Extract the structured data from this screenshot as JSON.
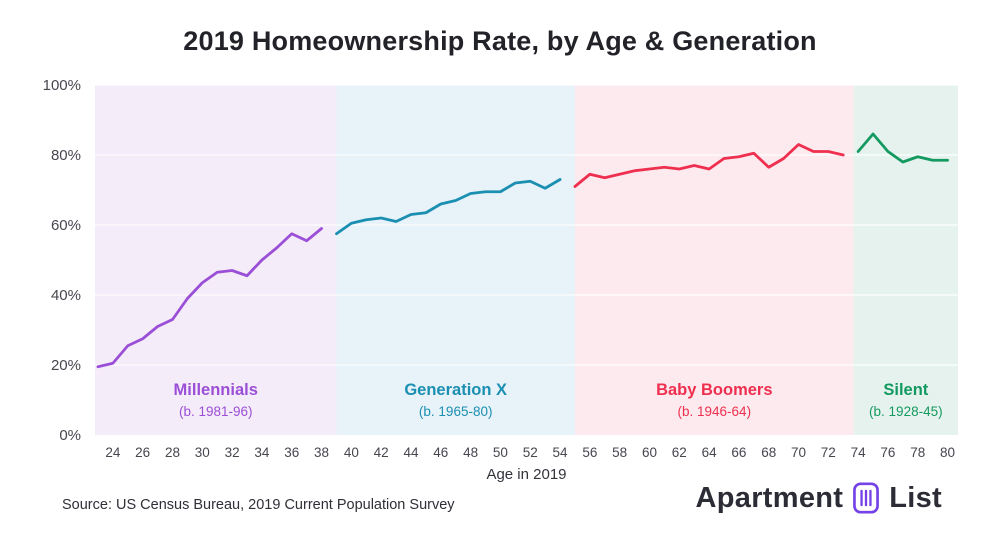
{
  "page": {
    "title": "2019 Homeownership Rate, by Age & Generation"
  },
  "footer": {
    "source": "Source: US Census Bureau, 2019 Current Population Survey",
    "logo_text_1": "Apartment",
    "logo_text_2": "List",
    "logo_color": "#7442e6"
  },
  "chart_data": {
    "type": "line",
    "title": "2019 Homeownership Rate, by Age & Generation",
    "xlabel": "Age in 2019",
    "ylabel": "",
    "x_range": [
      22.8,
      80.7
    ],
    "ylim": [
      0,
      100
    ],
    "y_ticks": [
      0,
      20,
      40,
      60,
      80,
      100
    ],
    "x_ticks": [
      24,
      26,
      28,
      30,
      32,
      34,
      36,
      38,
      40,
      42,
      44,
      46,
      48,
      50,
      52,
      54,
      56,
      58,
      60,
      62,
      64,
      66,
      68,
      70,
      72,
      74,
      76,
      78,
      80
    ],
    "grid": "white horizontal gridlines over shaded generation bands",
    "legend": "colored labels inside each generation band",
    "series": [
      {
        "name": "millennials",
        "label": "Millennials",
        "sublabel": "(b. 1981-96)",
        "line_color": "#9b4fd6",
        "band_color": "#f4ecf9",
        "band": [
          22.8,
          39.0
        ],
        "ages": [
          23,
          24,
          25,
          26,
          27,
          28,
          29,
          30,
          31,
          32,
          33,
          34,
          35,
          36,
          37,
          38
        ],
        "values": [
          19.5,
          20.5,
          25.5,
          27.5,
          31,
          33,
          39,
          43.5,
          46.5,
          47,
          45.5,
          50,
          53.5,
          57.5,
          55.5,
          59
        ]
      },
      {
        "name": "generation-x",
        "label": "Generation X",
        "sublabel": "(b. 1965-80)",
        "line_color": "#1b8fb2",
        "band_color": "#e7f3f8",
        "band": [
          39.0,
          55.0
        ],
        "ages": [
          39,
          40,
          41,
          42,
          43,
          44,
          45,
          46,
          47,
          48,
          49,
          50,
          51,
          52,
          53,
          54
        ],
        "values": [
          57.5,
          60.5,
          61.5,
          62,
          61,
          63,
          63.5,
          66,
          67,
          69,
          69.5,
          69.5,
          72,
          72.5,
          70.5,
          73
        ]
      },
      {
        "name": "baby-boomers",
        "label": "Baby Boomers",
        "sublabel": "(b. 1946-64)",
        "line_color": "#ee2f4f",
        "band_color": "#fdeaee",
        "band": [
          55.0,
          73.7
        ],
        "ages": [
          55,
          56,
          57,
          58,
          59,
          60,
          61,
          62,
          63,
          64,
          65,
          66,
          67,
          68,
          69,
          70,
          71,
          72,
          73
        ],
        "values": [
          71,
          74.5,
          73.5,
          74.5,
          75.5,
          76,
          76.5,
          76,
          77,
          76,
          79,
          79.5,
          80.5,
          76.5,
          79,
          83,
          81,
          81,
          80
        ]
      },
      {
        "name": "silent",
        "label": "Silent",
        "sublabel": "(b. 1928-45)",
        "line_color": "#149a61",
        "band_color": "#e6f2ed",
        "band": [
          73.7,
          80.7
        ],
        "ages": [
          74,
          75,
          76,
          77,
          78,
          79,
          80
        ],
        "values": [
          81,
          86,
          81,
          78,
          79.5,
          78.5,
          78.5
        ]
      }
    ]
  }
}
